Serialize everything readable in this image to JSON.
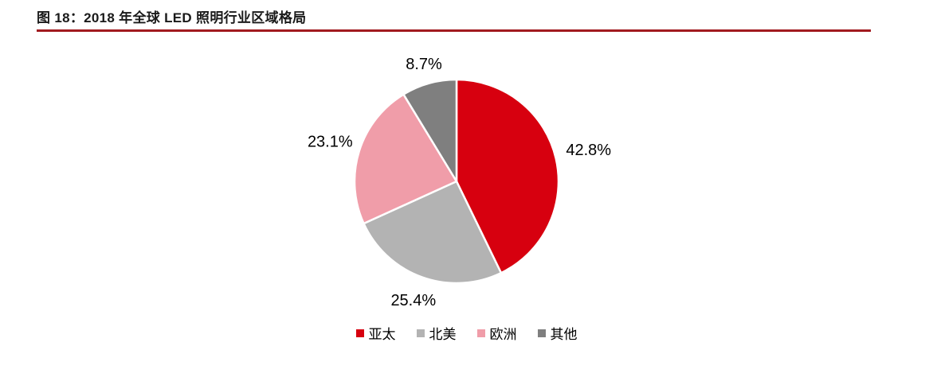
{
  "header": {
    "title": "图 18：2018 年全球 LED 照明行业区域格局"
  },
  "colors": {
    "title_rule": "#A11A1F",
    "slice_border": "#FFFFFF",
    "label_text": "#000000"
  },
  "chart_data": {
    "type": "pie",
    "title": "2018 年全球 LED 照明行业区域格局",
    "categories": [
      "亚太",
      "北美",
      "欧洲",
      "其他"
    ],
    "values": [
      42.8,
      25.4,
      23.1,
      8.7
    ],
    "slice_labels": [
      "42.8%",
      "25.4%",
      "23.1%",
      "8.7%"
    ],
    "colors": [
      "#D7000F",
      "#B3B3B3",
      "#F09DA9",
      "#7F7F7F"
    ],
    "keys": [
      "asia-pacific",
      "north-america",
      "europe",
      "others"
    ],
    "start_angle_deg": 0,
    "direction": "clockwise",
    "unit": "%",
    "legend_position": "bottom",
    "legend": [
      "亚太",
      "北美",
      "欧洲",
      "其他"
    ]
  }
}
